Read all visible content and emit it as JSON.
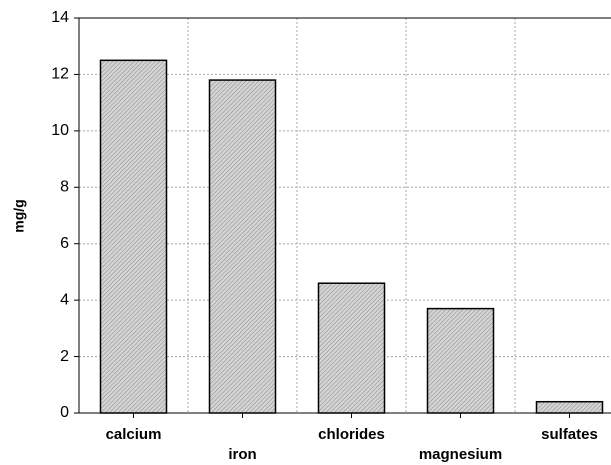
{
  "chart_data": {
    "type": "bar",
    "y_label": "mg/g",
    "categories": [
      "calcium",
      "iron",
      "chlorides",
      "magnesium",
      "sulfates"
    ],
    "values": [
      12.5,
      11.8,
      4.6,
      3.7,
      0.4
    ],
    "color": "#c8c8c8",
    "ylim": [
      0,
      14
    ],
    "yticks": [
      0,
      2,
      4,
      6,
      8,
      10,
      12,
      14
    ],
    "grid": true
  }
}
